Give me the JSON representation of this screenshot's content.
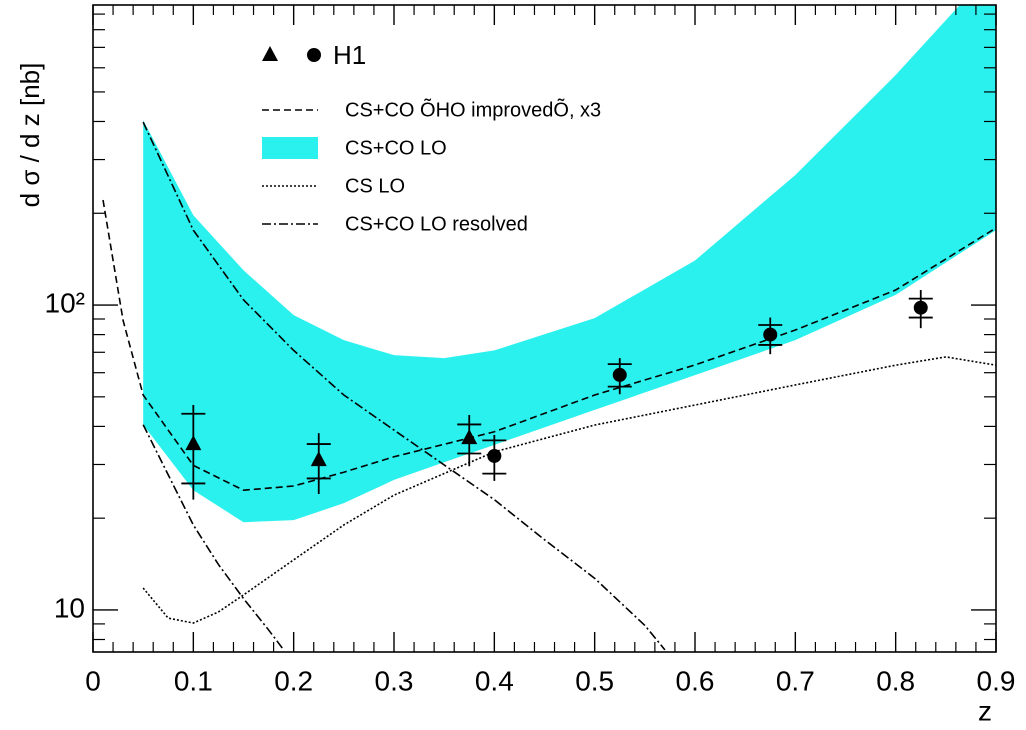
{
  "chart_data": {
    "type": "line",
    "y_label": "d σ / d z [nb]",
    "x_label": "z",
    "xlim": [
      0,
      0.9
    ],
    "xticks": [
      0,
      0.1,
      0.2,
      0.3,
      0.4,
      0.5,
      0.6,
      0.7,
      0.8,
      0.9
    ],
    "xticks_minor": [
      0.02,
      0.04,
      0.06,
      0.08,
      0.12,
      0.14,
      0.16,
      0.18,
      0.22,
      0.24,
      0.26,
      0.28,
      0.32,
      0.34,
      0.36,
      0.38,
      0.42,
      0.44,
      0.46,
      0.48,
      0.52,
      0.54,
      0.56,
      0.58,
      0.62,
      0.64,
      0.66,
      0.68,
      0.72,
      0.74,
      0.76,
      0.78,
      0.82,
      0.84,
      0.86,
      0.88
    ],
    "ylim": [
      7.28,
      964
    ],
    "log_y": true,
    "yticks": [
      10,
      {
        "value": 100,
        "label": "10²"
      }
    ],
    "yticks_minor": [
      8,
      9,
      20,
      30,
      40,
      50,
      60,
      70,
      80,
      90,
      200,
      300,
      400,
      500,
      600,
      700,
      800,
      900
    ],
    "legend": "upper center",
    "series": [
      {
        "name": "H1",
        "style": "points",
        "marker": "triangle",
        "color": "#000000",
        "x": [
          0.1,
          0.225,
          0.375
        ],
        "values": [
          35,
          31,
          36.6
        ],
        "stat_error": [
          9,
          4,
          4
        ],
        "total_error": [
          12,
          7,
          7
        ]
      },
      {
        "style": "points",
        "marker": "circle",
        "color": "#000000",
        "x": [
          0.4,
          0.525,
          0.675,
          0.825
        ],
        "values": [
          32,
          59,
          80,
          98
        ],
        "stat_error": [
          4,
          5,
          6,
          7
        ],
        "total_error": [
          5.5,
          8,
          11,
          14
        ]
      },
      {
        "name": "CS+CO ÕHO improvedÕ, x3",
        "style": "dashed",
        "color": "#000000",
        "x": [
          0.01,
          0.03,
          0.05,
          0.1,
          0.15,
          0.2,
          0.25,
          0.3,
          0.4,
          0.5,
          0.6,
          0.7,
          0.8,
          0.9
        ],
        "values": [
          221,
          89,
          50.7,
          29.8,
          24.7,
          25.5,
          28.3,
          31.8,
          38.4,
          50.7,
          63.6,
          82.8,
          112,
          179
        ]
      },
      {
        "name": "CS+CO LO",
        "style": "band",
        "color": "#2af1ee",
        "x": [
          0.05,
          0.1,
          0.15,
          0.2,
          0.25,
          0.3,
          0.35,
          0.4,
          0.5,
          0.6,
          0.7,
          0.8,
          0.9
        ],
        "upper": [
          404,
          197,
          130,
          92.7,
          76.7,
          68.5,
          67,
          71,
          90.6,
          140,
          267,
          568,
          1300
        ],
        "lower": [
          40.5,
          24.7,
          19.4,
          19.7,
          22.4,
          26.7,
          30.5,
          34.8,
          45.3,
          58.9,
          76.7,
          108,
          176
        ]
      },
      {
        "name": "CS LO",
        "style": "dotted",
        "color": "#000000",
        "x": [
          0.05,
          0.075,
          0.1,
          0.125,
          0.15,
          0.2,
          0.25,
          0.3,
          0.4,
          0.5,
          0.6,
          0.7,
          0.8,
          0.85,
          0.9
        ],
        "values": [
          11.8,
          9.4,
          9.06,
          9.85,
          11.2,
          14.6,
          19,
          23.8,
          33,
          40.4,
          47,
          54.7,
          63.5,
          67.6,
          63.5
        ]
      },
      {
        "name": "CS+CO LO resolved",
        "style": "dashdot",
        "color": "#000000",
        "x": [
          0.05,
          0.1,
          0.15,
          0.2,
          0.25,
          0.3,
          0.35,
          0.4,
          0.45,
          0.5,
          0.55,
          0.57
        ],
        "values": [
          398,
          176,
          104,
          71,
          50.7,
          38.9,
          29.9,
          23,
          17,
          12.7,
          8.9,
          7.4
        ]
      },
      {
        "style": "dashdot",
        "color": "#000000",
        "x": [
          0.05,
          0.08,
          0.1,
          0.125,
          0.15,
          0.175,
          0.19
        ],
        "values": [
          40.5,
          25.7,
          19,
          14.1,
          10.9,
          8.6,
          7.4
        ]
      }
    ]
  }
}
